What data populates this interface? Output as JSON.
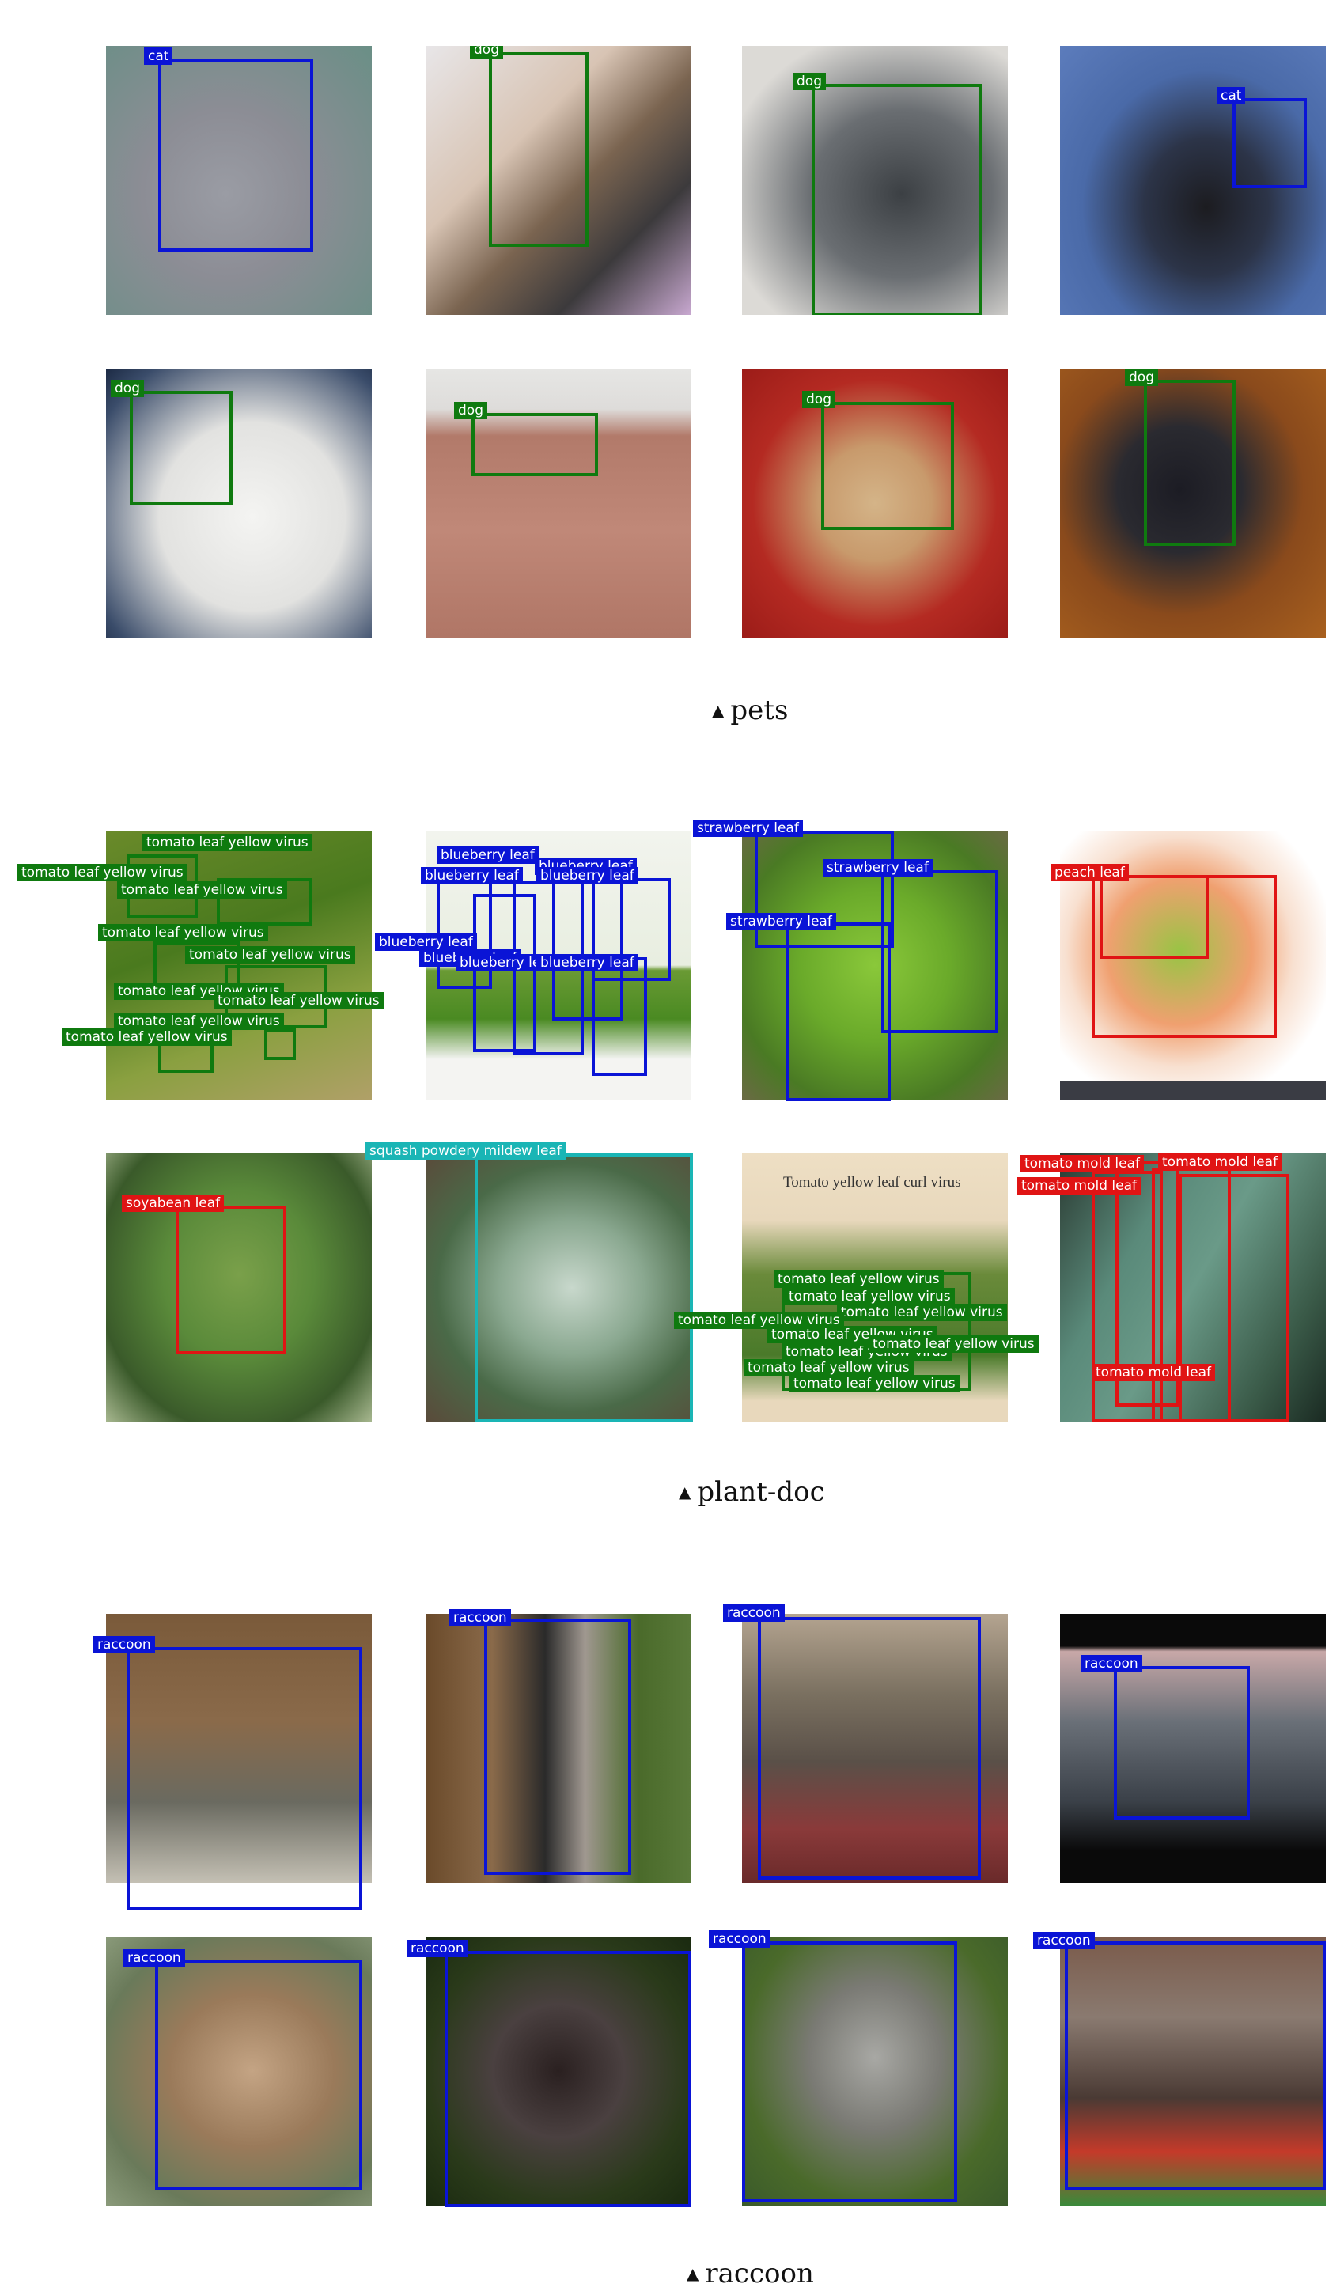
{
  "colors": {
    "blue": "#0a14d6",
    "green": "#0f7a0f",
    "red": "#e01414",
    "cyan": "#1ab5b5"
  },
  "sections": [
    {
      "caption": "pets",
      "tiles": [
        {
          "labels": [
            "cat"
          ]
        },
        {
          "labels": [
            "dog"
          ]
        },
        {
          "labels": [
            "dog"
          ]
        },
        {
          "labels": [
            "cat"
          ]
        },
        {
          "labels": [
            "dog"
          ]
        },
        {
          "labels": [
            "dog"
          ]
        },
        {
          "labels": [
            "dog"
          ]
        },
        {
          "labels": [
            "dog"
          ]
        }
      ]
    },
    {
      "caption": "plant-doc",
      "tiles": [
        {
          "labels": [
            "tomato leaf yellow virus"
          ]
        },
        {
          "labels": [
            "blueberry leaf"
          ]
        },
        {
          "labels": [
            "strawberry leaf"
          ]
        },
        {
          "labels": [
            "peach leaf"
          ]
        },
        {
          "labels": [
            "soyabean leaf"
          ]
        },
        {
          "labels": [
            "squash powdery mildew leaf"
          ]
        },
        {
          "labels": [
            "tomato leaf yellow virus"
          ],
          "text": "Tomato yellow leaf curl virus"
        },
        {
          "labels": [
            "tomato mold leaf"
          ]
        }
      ]
    },
    {
      "caption": "raccoon",
      "tiles": [
        {
          "labels": [
            "raccoon"
          ]
        },
        {
          "labels": [
            "raccoon"
          ]
        },
        {
          "labels": [
            "raccoon"
          ]
        },
        {
          "labels": [
            "raccoon"
          ]
        },
        {
          "labels": [
            "raccoon"
          ]
        },
        {
          "labels": [
            "raccoon"
          ]
        },
        {
          "labels": [
            "raccoon"
          ]
        },
        {
          "labels": [
            "raccoon"
          ]
        }
      ]
    }
  ]
}
